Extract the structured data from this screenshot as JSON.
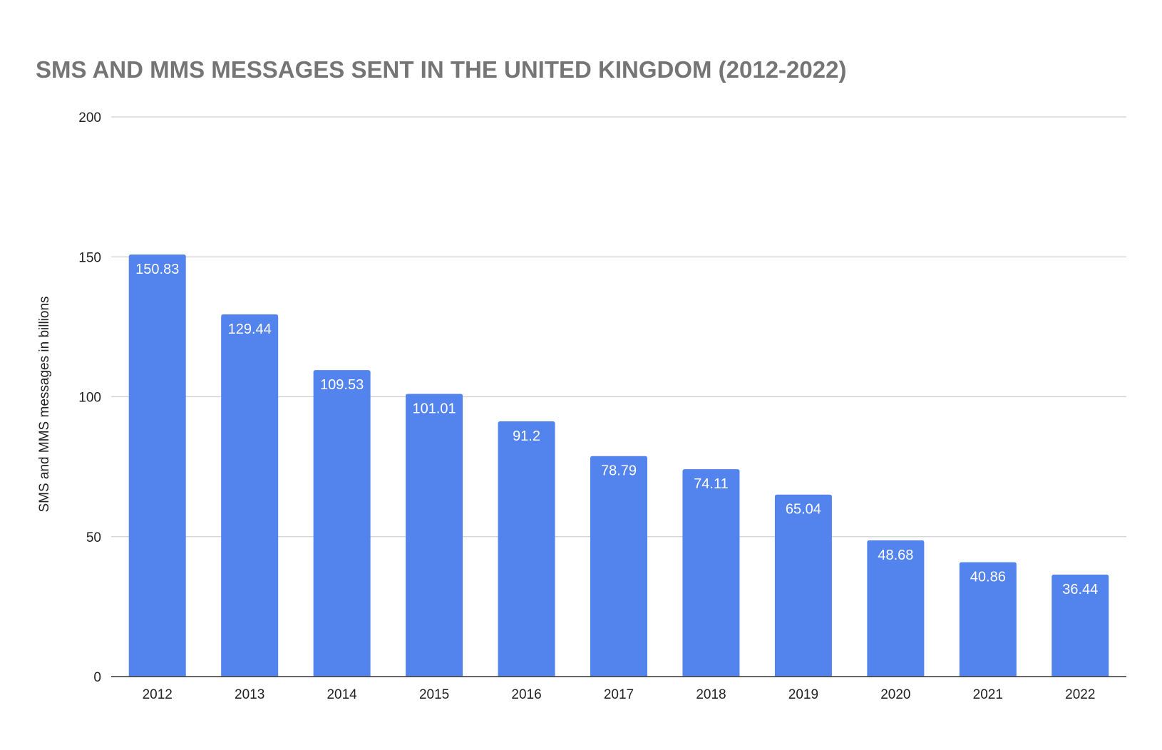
{
  "chart_data": {
    "type": "bar",
    "title": "SMS AND MMS MESSAGES SENT IN THE UNITED KINGDOM (2012-2022)",
    "xlabel": "",
    "ylabel": "SMS and MMS messages in billions",
    "categories": [
      "2012",
      "2013",
      "2014",
      "2015",
      "2016",
      "2017",
      "2018",
      "2019",
      "2020",
      "2021",
      "2022"
    ],
    "values": [
      150.83,
      129.44,
      109.53,
      101.01,
      91.2,
      78.79,
      74.11,
      65.04,
      48.68,
      40.86,
      36.44
    ],
    "data_labels": [
      "150.83",
      "129.44",
      "109.53",
      "101.01",
      "91.2",
      "78.79",
      "74.11",
      "65.04",
      "48.68",
      "40.86",
      "36.44"
    ],
    "ylim": [
      0,
      200
    ],
    "yticks": [
      0,
      50,
      100,
      150,
      200
    ],
    "ytick_labels": [
      "0",
      "50",
      "100",
      "150",
      "200"
    ],
    "grid": true,
    "legend": "none",
    "colors": {
      "bar": "#5383ec",
      "title": "#757575",
      "grid": "#d0d0d0",
      "axis_text": "#222222",
      "data_label": "#ffffff"
    }
  }
}
